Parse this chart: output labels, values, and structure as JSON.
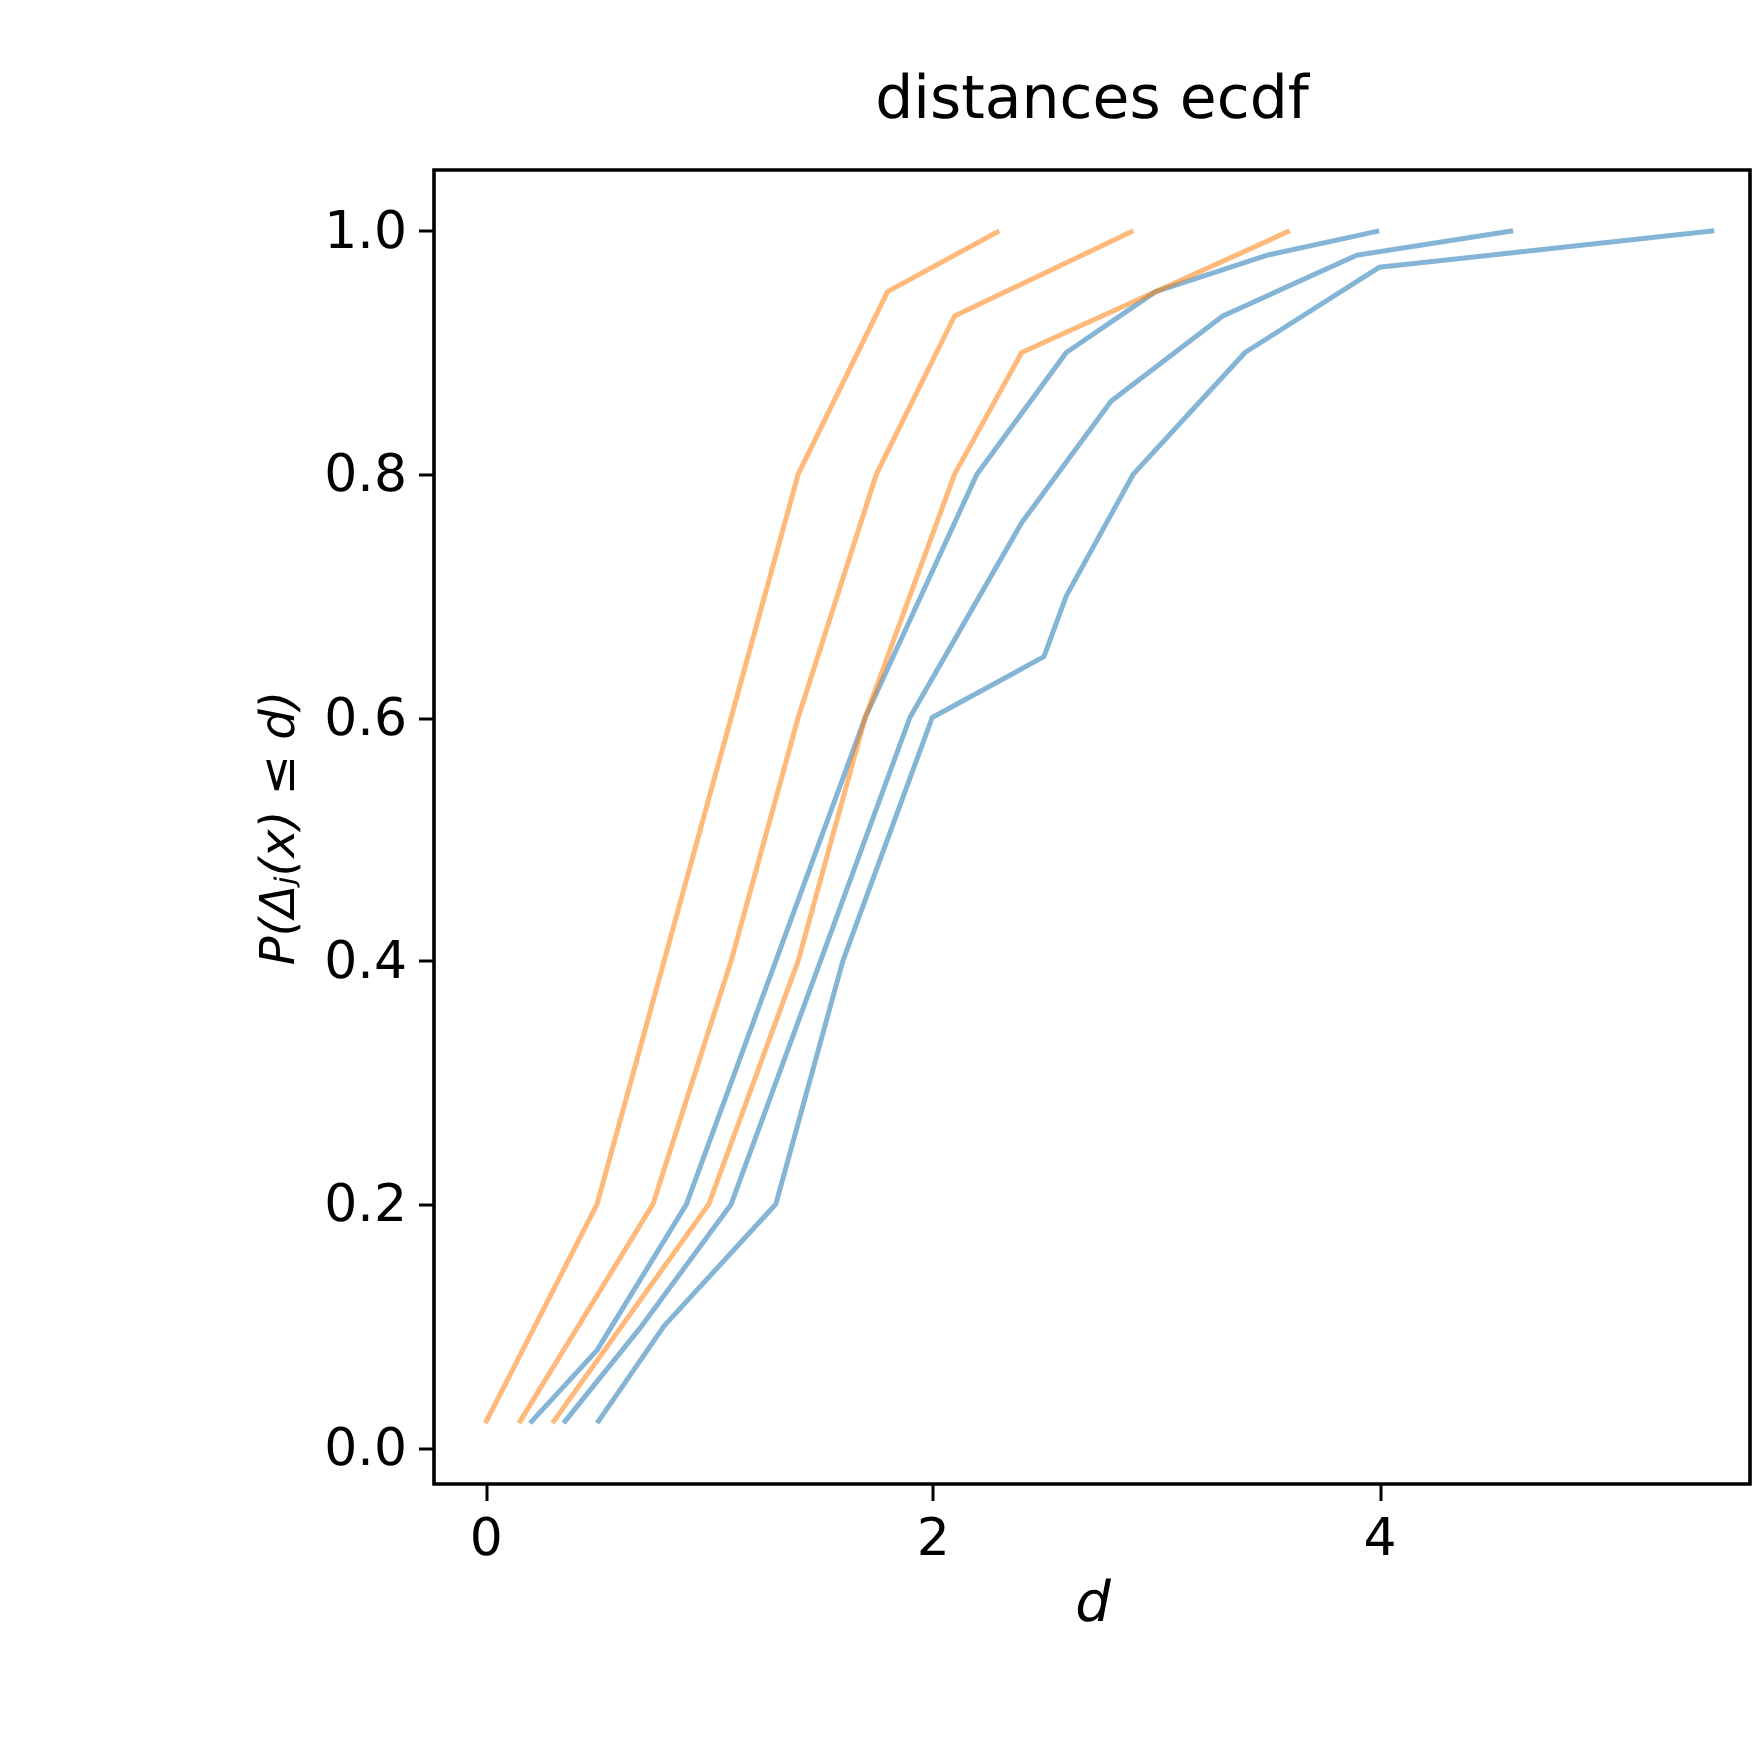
{
  "chart_data": {
    "type": "line",
    "title": "distances ecdf",
    "xlabel": "d",
    "ylabel": "P(Δⱼ(x) ≤ d)",
    "xlim": [
      -0.23,
      5.66
    ],
    "ylim": [
      -0.03,
      1.05
    ],
    "xticks": [
      0,
      2,
      4
    ],
    "yticks": [
      {
        "value": 0,
        "label": "0.0"
      },
      {
        "value": 0.2,
        "label": "0.2"
      },
      {
        "value": 0.4,
        "label": "0.4"
      },
      {
        "value": 0.6,
        "label": "0.6"
      },
      {
        "value": 0.8,
        "label": "0.8"
      },
      {
        "value": 1,
        "label": "1.0"
      }
    ],
    "series": [
      {
        "color": "#1f77b4",
        "x": [
          0.2,
          0.5,
          0.9,
          1.3,
          1.7,
          2.2,
          2.6,
          3.0,
          3.5,
          4.0
        ],
        "values": [
          0.02,
          0.08,
          0.2,
          0.4,
          0.6,
          0.8,
          0.9,
          0.95,
          0.98,
          1.0
        ]
      },
      {
        "color": "#1f77b4",
        "x": [
          0.35,
          0.7,
          1.1,
          1.5,
          1.9,
          2.4,
          2.8,
          3.3,
          3.9,
          4.6
        ],
        "values": [
          0.02,
          0.1,
          0.2,
          0.4,
          0.6,
          0.76,
          0.86,
          0.93,
          0.98,
          1.0
        ]
      },
      {
        "color": "#1f77b4",
        "x": [
          0.5,
          0.8,
          1.3,
          1.6,
          2.0,
          2.5,
          2.6,
          2.9,
          3.4,
          4.0,
          5.5
        ],
        "values": [
          0.02,
          0.1,
          0.2,
          0.4,
          0.6,
          0.65,
          0.7,
          0.8,
          0.9,
          0.97,
          1.0
        ]
      },
      {
        "color": "#ff7f0e",
        "x": [
          0.0,
          0.5,
          0.8,
          1.1,
          1.4,
          1.8,
          2.3
        ],
        "values": [
          0.02,
          0.2,
          0.4,
          0.6,
          0.8,
          0.95,
          1.0
        ]
      },
      {
        "color": "#ff7f0e",
        "x": [
          0.15,
          0.75,
          1.1,
          1.4,
          1.75,
          2.1,
          2.9
        ],
        "values": [
          0.02,
          0.2,
          0.4,
          0.6,
          0.8,
          0.93,
          1.0
        ]
      },
      {
        "color": "#ff7f0e",
        "x": [
          0.3,
          1.0,
          1.4,
          1.7,
          2.1,
          2.4,
          3.6
        ],
        "values": [
          0.02,
          0.2,
          0.4,
          0.6,
          0.8,
          0.9,
          1.0
        ]
      }
    ]
  }
}
